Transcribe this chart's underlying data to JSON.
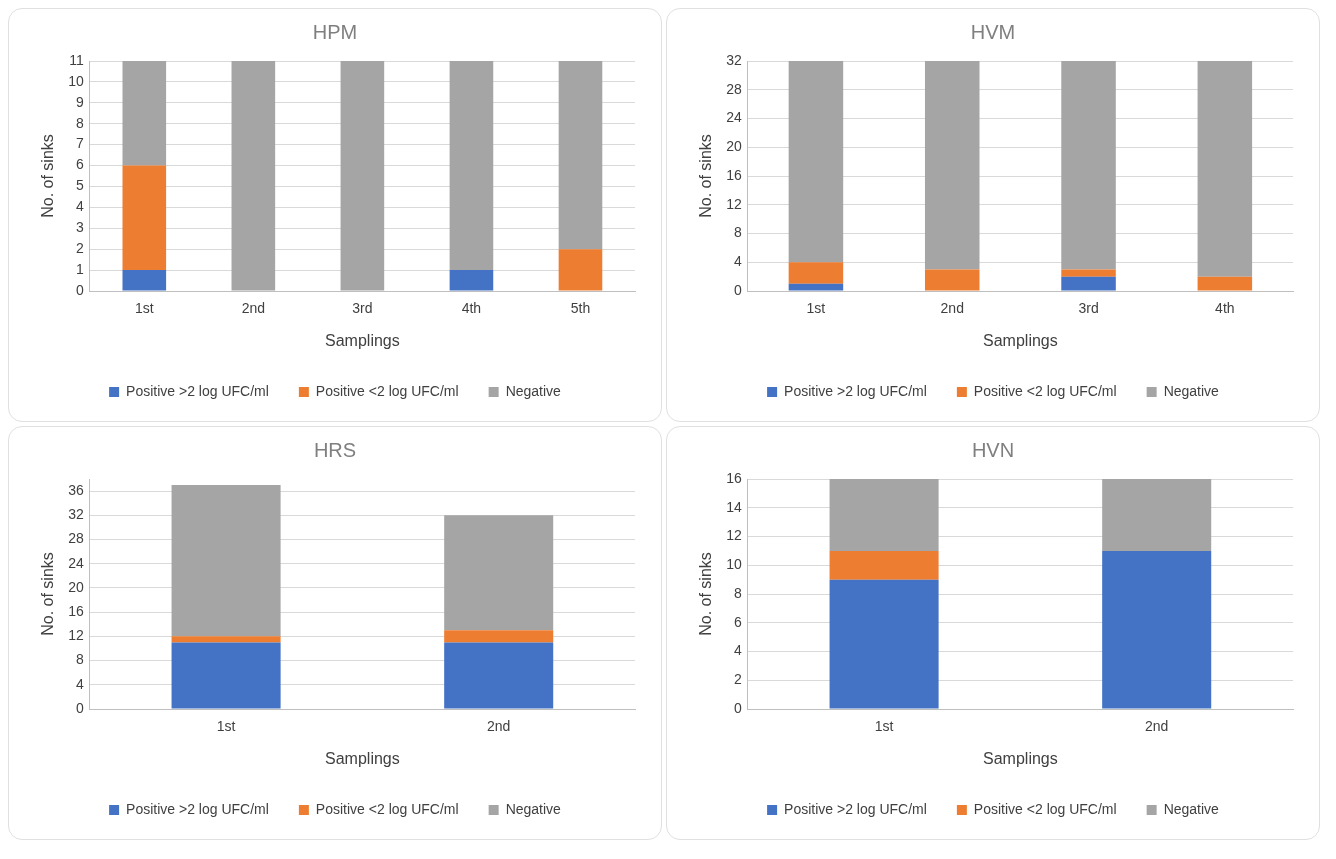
{
  "chart_data": [
    {
      "type": "bar",
      "title": "HPM",
      "xlabel": "Samplings",
      "ylabel": "No. of sinks",
      "categories": [
        "1st",
        "2nd",
        "3rd",
        "4th",
        "5th"
      ],
      "stacked": true,
      "ylim": [
        0,
        11
      ],
      "yticks": [
        0,
        1,
        2,
        3,
        4,
        5,
        6,
        7,
        8,
        9,
        10,
        11
      ],
      "grid": "y",
      "legend": "bottom",
      "series": [
        {
          "name": "Positive >2 log UFC/ml",
          "color": "#4472c4",
          "values": [
            1,
            0,
            0,
            1,
            0
          ]
        },
        {
          "name": "Positive <2 log UFC/ml",
          "color": "#ed7d31",
          "values": [
            5,
            0,
            0,
            0,
            2
          ]
        },
        {
          "name": "Negative",
          "color": "#a5a5a5",
          "values": [
            5,
            11,
            11,
            10,
            9
          ]
        }
      ]
    },
    {
      "type": "bar",
      "title": "HVM",
      "xlabel": "Samplings",
      "ylabel": "No. of sinks",
      "categories": [
        "1st",
        "2nd",
        "3rd",
        "4th"
      ],
      "stacked": true,
      "ylim": [
        0,
        32
      ],
      "yticks": [
        0,
        4,
        8,
        12,
        16,
        20,
        24,
        28,
        32
      ],
      "grid": "y",
      "legend": "bottom",
      "series": [
        {
          "name": "Positive >2 log UFC/ml",
          "color": "#4472c4",
          "values": [
            1,
            0,
            2,
            0
          ]
        },
        {
          "name": "Positive <2 log UFC/ml",
          "color": "#ed7d31",
          "values": [
            3,
            3,
            1,
            2
          ]
        },
        {
          "name": "Negative",
          "color": "#a5a5a5",
          "values": [
            28,
            29,
            29,
            30
          ]
        }
      ]
    },
    {
      "type": "bar",
      "title": "HRS",
      "xlabel": "Samplings",
      "ylabel": "No. of sinks",
      "categories": [
        "1st",
        "2nd"
      ],
      "stacked": true,
      "ylim": [
        0,
        38
      ],
      "yticks": [
        0,
        4,
        8,
        12,
        16,
        20,
        24,
        28,
        32,
        36
      ],
      "grid": "y",
      "legend": "bottom",
      "series": [
        {
          "name": "Positive >2 log UFC/ml",
          "color": "#4472c4",
          "values": [
            11,
            11
          ]
        },
        {
          "name": "Positive <2 log UFC/ml",
          "color": "#ed7d31",
          "values": [
            1,
            2
          ]
        },
        {
          "name": "Negative",
          "color": "#a5a5a5",
          "values": [
            25,
            19
          ]
        }
      ]
    },
    {
      "type": "bar",
      "title": "HVN",
      "xlabel": "Samplings",
      "ylabel": "No. of sinks",
      "categories": [
        "1st",
        "2nd"
      ],
      "stacked": true,
      "ylim": [
        0,
        16
      ],
      "yticks": [
        0,
        2,
        4,
        6,
        8,
        10,
        12,
        14,
        16
      ],
      "grid": "y",
      "legend": "bottom",
      "series": [
        {
          "name": "Positive >2 log UFC/ml",
          "color": "#4472c4",
          "values": [
            9,
            11
          ]
        },
        {
          "name": "Positive <2 log UFC/ml",
          "color": "#ed7d31",
          "values": [
            2,
            0
          ]
        },
        {
          "name": "Negative",
          "color": "#a5a5a5",
          "values": [
            5,
            5
          ]
        }
      ]
    }
  ]
}
